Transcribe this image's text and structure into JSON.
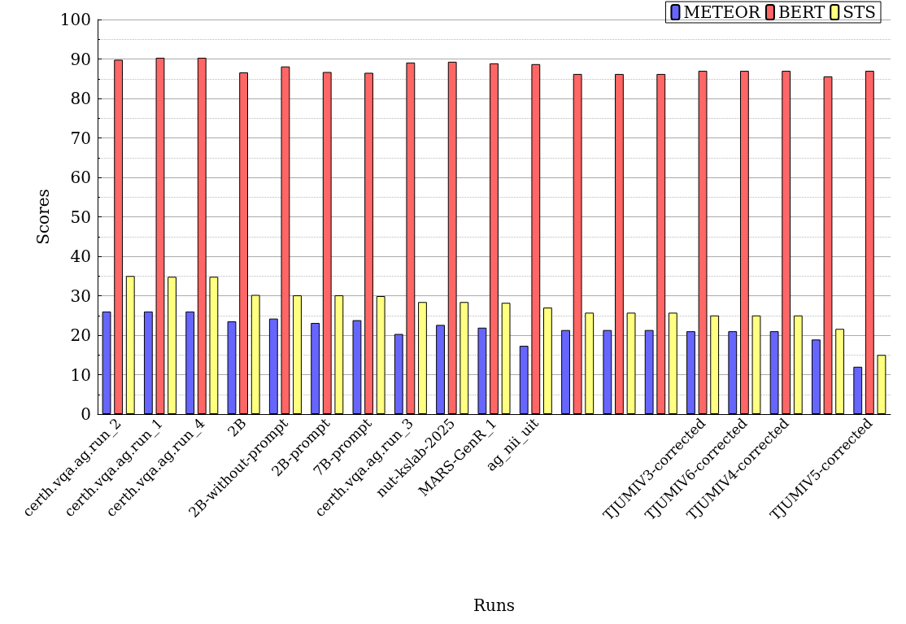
{
  "chart_data": {
    "type": "bar",
    "xlabel": "Runs",
    "ylabel": "Scores",
    "categories": [
      "certh.vqa.ag.run_2",
      "certh.vqa.ag.run_1",
      "certh.vqa.ag.run_4",
      "2B",
      "2B-without-prompt",
      "2B-prompt",
      "7B-prompt",
      "certh.vqa.ag.run_3",
      "nut-kslab-2025",
      "MARS-GenR_1",
      "ag_nii_uit",
      null,
      null,
      null,
      "TJUMIV3-corrected",
      "TJUMIV6-corrected",
      "TJUMIV4-corrected",
      null,
      "TJUMIV5-corrected"
    ],
    "series": [
      {
        "name": "METEOR",
        "color": "#6666ff",
        "values": [
          26,
          26,
          26,
          23.5,
          24.2,
          23.1,
          23.8,
          20.3,
          22.6,
          21.9,
          17.3,
          21.3,
          21.3,
          21.3,
          21,
          21,
          21,
          18.9,
          12
        ]
      },
      {
        "name": "BERT",
        "color": "#ff6666",
        "values": [
          89.8,
          90.3,
          90.3,
          86.6,
          88.1,
          86.7,
          86.5,
          89.1,
          89.3,
          88.9,
          88.7,
          86.2,
          86.2,
          86.2,
          87,
          87,
          87,
          85.6,
          87
        ]
      },
      {
        "name": "STS",
        "color": "#ffff80",
        "values": [
          35,
          34.8,
          34.8,
          30.2,
          30.1,
          30.1,
          29.9,
          28.4,
          28.4,
          28.2,
          27,
          25.7,
          25.7,
          25.7,
          25,
          25,
          25,
          21.6,
          15
        ]
      }
    ],
    "ylim": [
      0,
      100
    ],
    "yticks": [
      0,
      10,
      20,
      30,
      40,
      50,
      60,
      70,
      80,
      90,
      100
    ],
    "grid": "y",
    "legend": "top right"
  }
}
